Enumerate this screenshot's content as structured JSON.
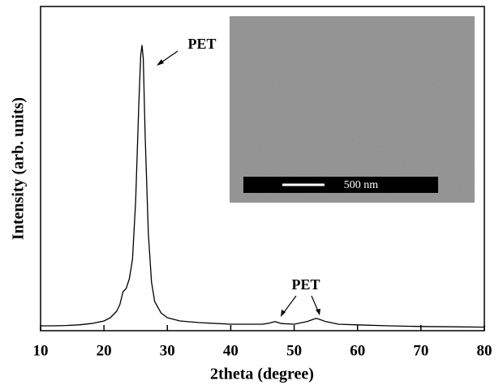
{
  "chart_data": {
    "type": "line",
    "xlabel": "2theta (degree)",
    "ylabel": "Intensity (arb. units)",
    "annotations": [
      "PET",
      "PET"
    ],
    "inset_scale_label": "500 nm",
    "xlim": [
      10,
      80
    ],
    "xticks": [
      10,
      20,
      30,
      40,
      50,
      60,
      70,
      80
    ],
    "ylim": [
      0,
      100
    ],
    "series": [
      {
        "color": "#000000",
        "x": [
          10,
          12,
          14,
          16,
          18,
          20,
          21,
          22,
          22.5,
          23,
          23.5,
          24,
          24.5,
          25,
          25.5,
          25.8,
          26,
          26.2,
          26.5,
          27,
          27.5,
          28,
          29,
          30,
          32,
          35,
          40,
          45,
          46,
          47,
          48,
          50,
          52,
          53,
          53.5,
          54,
          55,
          57,
          60,
          65,
          70,
          75,
          80
        ],
        "values": [
          1.5,
          1.5,
          1.6,
          1.8,
          2.2,
          3,
          4,
          6,
          8,
          12,
          13,
          16,
          22,
          40,
          70,
          85,
          88,
          84,
          60,
          30,
          15,
          9,
          5.5,
          4,
          3,
          2.5,
          2,
          2,
          2.3,
          2.8,
          2.2,
          2,
          2.8,
          3.5,
          3.8,
          3.5,
          2.8,
          2,
          1.8,
          1.5,
          1.3,
          1.2,
          1.1
        ]
      }
    ]
  }
}
